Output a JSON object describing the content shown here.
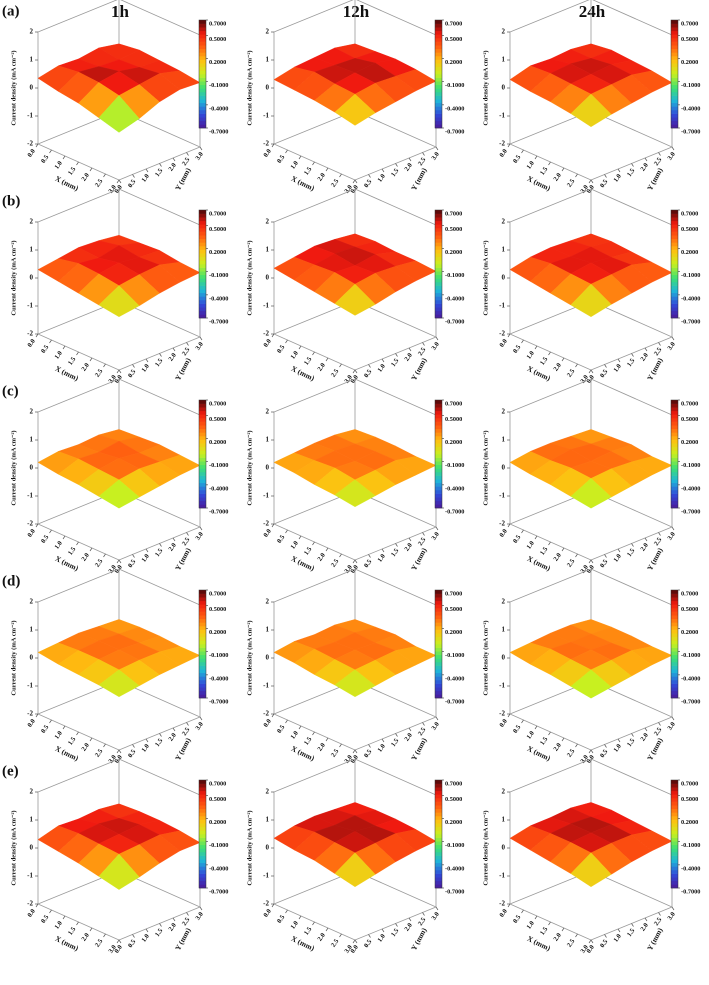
{
  "column_titles": [
    "1h",
    "12h",
    "24h"
  ],
  "row_labels": [
    "(a)",
    "(b)",
    "(c)",
    "(d)",
    "(e)"
  ],
  "axes": {
    "xlabel": "X (mm)",
    "ylabel": "Y (mm)",
    "zlabel": "Current density (mA cm⁻²)",
    "xlim": [
      0,
      3
    ],
    "ylim": [
      0,
      3
    ],
    "zlim": [
      -2,
      2
    ],
    "xticks": [
      {
        "value": 0,
        "label": "0.0"
      },
      0.5,
      {
        "value": 1,
        "label": "1.0"
      },
      1.5,
      {
        "value": 2,
        "label": "2.0"
      },
      2.5,
      {
        "value": 3,
        "label": "3.0"
      }
    ],
    "yticks": [
      {
        "value": 0,
        "label": "0.0"
      },
      0.5,
      {
        "value": 1,
        "label": "1.0"
      },
      1.5,
      {
        "value": 2,
        "label": "2.0"
      },
      2.5,
      {
        "value": 3,
        "label": "3.0"
      }
    ],
    "zticks": [
      -2,
      -1,
      0,
      1,
      2
    ],
    "box_color": "#9a9a9a",
    "colorbar": {
      "lim": [
        -0.7,
        0.7
      ],
      "ticks": [
        {
          "value": 0.7,
          "label": "0.7000"
        },
        {
          "value": 0.5,
          "label": "0.5000"
        },
        {
          "value": 0.2,
          "label": "0.2000"
        },
        {
          "value": -0.1,
          "label": "-0.1000"
        },
        {
          "value": -0.4,
          "label": "-0.4000"
        },
        {
          "value": -0.7,
          "label": "-0.7000"
        }
      ],
      "colors": [
        "#4a1a9a",
        "#3048d8",
        "#1fb4d8",
        "#40e070",
        "#c8f020",
        "#ffc010",
        "#ff6010",
        "#f01a10",
        "#4a0808"
      ]
    }
  },
  "chart_data": [
    {
      "type": "surface",
      "z": [
        [
          0.35,
          0.5,
          0.45,
          0.55,
          0.4
        ],
        [
          0.2,
          0.6,
          0.5,
          0.45,
          0.5
        ],
        [
          0.1,
          0.55,
          0.65,
          0.5,
          0.45
        ],
        [
          -0.1,
          0.4,
          0.5,
          0.6,
          0.4
        ],
        [
          -0.3,
          -0.1,
          0.2,
          0.35,
          0.3
        ]
      ]
    },
    {
      "type": "surface",
      "z": [
        [
          0.3,
          0.45,
          0.5,
          0.55,
          0.4
        ],
        [
          0.25,
          0.6,
          0.55,
          0.5,
          0.45
        ],
        [
          0.2,
          0.5,
          0.6,
          0.65,
          0.5
        ],
        [
          0.1,
          0.45,
          0.55,
          0.5,
          0.45
        ],
        [
          -0.05,
          0.1,
          0.2,
          0.3,
          0.35
        ]
      ]
    },
    {
      "type": "surface",
      "z": [
        [
          0.3,
          0.5,
          0.45,
          0.5,
          0.4
        ],
        [
          0.2,
          0.55,
          0.6,
          0.5,
          0.5
        ],
        [
          0.15,
          0.5,
          0.55,
          0.6,
          0.45
        ],
        [
          0.05,
          0.45,
          0.5,
          0.55,
          0.4
        ],
        [
          -0.1,
          0.05,
          0.15,
          0.25,
          0.3
        ]
      ]
    },
    {
      "type": "surface",
      "z": [
        [
          0.3,
          0.4,
          0.5,
          0.45,
          0.35
        ],
        [
          0.2,
          0.55,
          0.45,
          0.6,
          0.4
        ],
        [
          0.1,
          0.5,
          0.6,
          0.5,
          0.45
        ],
        [
          0.0,
          0.4,
          0.5,
          0.55,
          0.35
        ],
        [
          -0.1,
          0.0,
          0.15,
          0.25,
          0.3
        ]
      ]
    },
    {
      "type": "surface",
      "z": [
        [
          0.35,
          0.45,
          0.55,
          0.5,
          0.4
        ],
        [
          0.25,
          0.5,
          0.6,
          0.55,
          0.45
        ],
        [
          0.15,
          0.55,
          0.5,
          0.6,
          0.4
        ],
        [
          0.05,
          0.45,
          0.55,
          0.5,
          0.4
        ],
        [
          -0.05,
          0.05,
          0.2,
          0.3,
          0.35
        ]
      ]
    },
    {
      "type": "surface",
      "z": [
        [
          0.3,
          0.45,
          0.5,
          0.45,
          0.4
        ],
        [
          0.2,
          0.55,
          0.5,
          0.55,
          0.45
        ],
        [
          0.1,
          0.5,
          0.6,
          0.5,
          0.4
        ],
        [
          0.0,
          0.45,
          0.5,
          0.55,
          0.35
        ],
        [
          -0.1,
          0.05,
          0.15,
          0.25,
          0.3
        ]
      ]
    },
    {
      "type": "surface",
      "z": [
        [
          0.2,
          0.3,
          0.25,
          0.3,
          0.2
        ],
        [
          0.1,
          0.35,
          0.3,
          0.4,
          0.25
        ],
        [
          0.05,
          0.3,
          0.4,
          0.3,
          0.3
        ],
        [
          -0.05,
          0.25,
          0.35,
          0.3,
          0.25
        ],
        [
          -0.15,
          -0.05,
          0.05,
          0.15,
          0.2
        ]
      ]
    },
    {
      "type": "surface",
      "z": [
        [
          0.2,
          0.25,
          0.3,
          0.3,
          0.2
        ],
        [
          0.15,
          0.3,
          0.35,
          0.3,
          0.25
        ],
        [
          0.05,
          0.35,
          0.3,
          0.35,
          0.25
        ],
        [
          0.0,
          0.25,
          0.3,
          0.35,
          0.2
        ],
        [
          -0.1,
          0.0,
          0.1,
          0.15,
          0.2
        ]
      ]
    },
    {
      "type": "surface",
      "z": [
        [
          0.2,
          0.3,
          0.3,
          0.25,
          0.2
        ],
        [
          0.1,
          0.3,
          0.4,
          0.3,
          0.25
        ],
        [
          0.05,
          0.35,
          0.3,
          0.35,
          0.3
        ],
        [
          -0.05,
          0.3,
          0.35,
          0.3,
          0.2
        ],
        [
          -0.15,
          -0.05,
          0.05,
          0.15,
          0.2
        ]
      ]
    },
    {
      "type": "surface",
      "z": [
        [
          0.2,
          0.25,
          0.3,
          0.25,
          0.2
        ],
        [
          0.1,
          0.3,
          0.35,
          0.3,
          0.25
        ],
        [
          0.05,
          0.3,
          0.35,
          0.3,
          0.25
        ],
        [
          0.0,
          0.25,
          0.3,
          0.3,
          0.2
        ],
        [
          -0.1,
          0.0,
          0.1,
          0.15,
          0.2
        ]
      ]
    },
    {
      "type": "surface",
      "z": [
        [
          0.2,
          0.3,
          0.25,
          0.3,
          0.2
        ],
        [
          0.15,
          0.35,
          0.3,
          0.35,
          0.25
        ],
        [
          0.05,
          0.3,
          0.35,
          0.3,
          0.3
        ],
        [
          0.0,
          0.25,
          0.3,
          0.35,
          0.2
        ],
        [
          -0.1,
          0.0,
          0.1,
          0.15,
          0.2
        ]
      ]
    },
    {
      "type": "surface",
      "z": [
        [
          0.2,
          0.25,
          0.3,
          0.3,
          0.2
        ],
        [
          0.1,
          0.35,
          0.3,
          0.3,
          0.25
        ],
        [
          0.05,
          0.3,
          0.35,
          0.3,
          0.25
        ],
        [
          -0.05,
          0.25,
          0.3,
          0.35,
          0.2
        ],
        [
          -0.15,
          -0.05,
          0.05,
          0.15,
          0.2
        ]
      ]
    },
    {
      "type": "surface",
      "z": [
        [
          0.3,
          0.5,
          0.45,
          0.5,
          0.4
        ],
        [
          0.2,
          0.55,
          0.6,
          0.5,
          0.45
        ],
        [
          0.1,
          0.5,
          0.55,
          0.6,
          0.45
        ],
        [
          -0.05,
          0.45,
          0.5,
          0.55,
          0.4
        ],
        [
          -0.2,
          -0.05,
          0.15,
          0.3,
          0.3
        ]
      ]
    },
    {
      "type": "surface",
      "z": [
        [
          0.35,
          0.5,
          0.55,
          0.5,
          0.45
        ],
        [
          0.25,
          0.6,
          0.55,
          0.6,
          0.5
        ],
        [
          0.2,
          0.55,
          0.65,
          0.55,
          0.5
        ],
        [
          0.05,
          0.5,
          0.55,
          0.6,
          0.45
        ],
        [
          -0.1,
          0.05,
          0.2,
          0.3,
          0.35
        ]
      ]
    },
    {
      "type": "surface",
      "z": [
        [
          0.35,
          0.5,
          0.5,
          0.55,
          0.45
        ],
        [
          0.25,
          0.55,
          0.6,
          0.55,
          0.5
        ],
        [
          0.15,
          0.55,
          0.6,
          0.6,
          0.45
        ],
        [
          0.05,
          0.5,
          0.55,
          0.55,
          0.4
        ],
        [
          -0.1,
          0.05,
          0.2,
          0.3,
          0.35
        ]
      ]
    }
  ]
}
